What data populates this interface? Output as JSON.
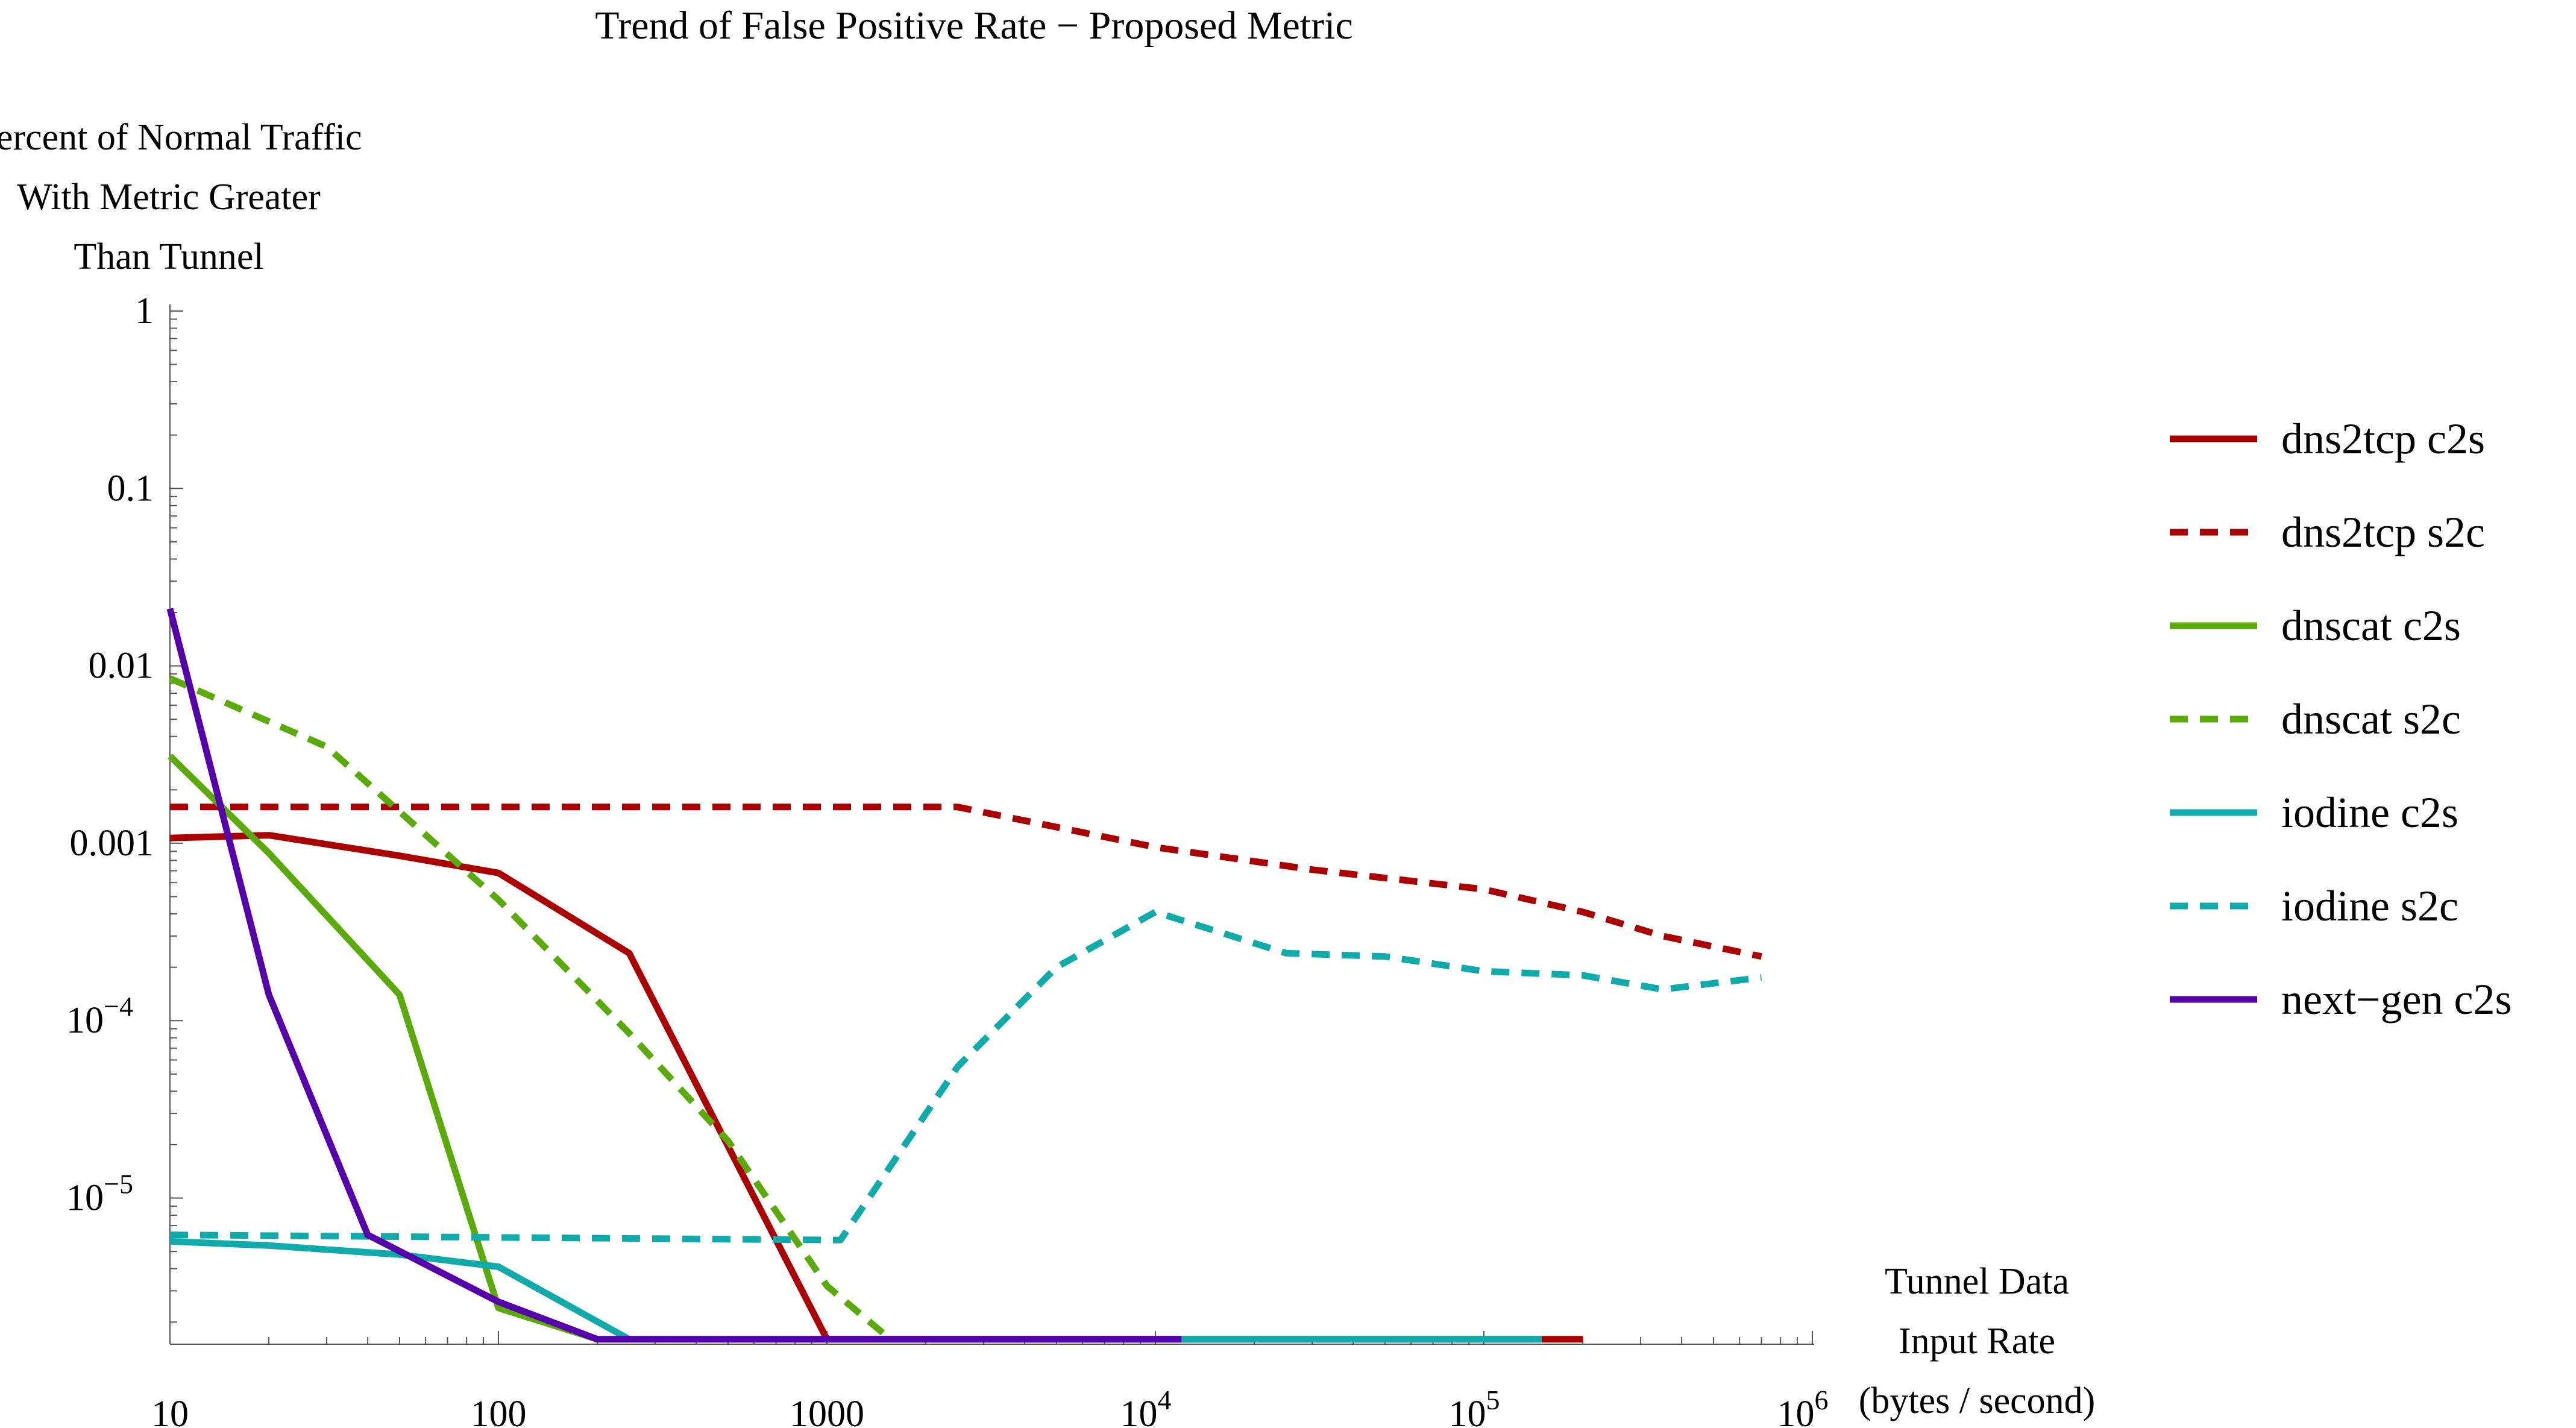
{
  "chart_data": {
    "type": "line",
    "title": "Trend of False Positive Rate − Proposed Metric",
    "ylabel_lines": [
      "Percent of Normal Traffic",
      "With Metric Greater",
      "Than Tunnel"
    ],
    "xlabel_lines": [
      "Tunnel Data",
      "Input Rate",
      "(bytes / second)"
    ],
    "x_scale": "log",
    "y_scale": "log",
    "xlim": [
      10,
      1000000
    ],
    "ylim": [
      1.5e-06,
      1
    ],
    "legend_position": "right",
    "grid": false,
    "x_ticks": [
      {
        "value": 10,
        "label": "10",
        "sup": ""
      },
      {
        "value": 100,
        "label": "100",
        "sup": ""
      },
      {
        "value": 1000,
        "label": "1000",
        "sup": ""
      },
      {
        "value": 10000,
        "label": "10",
        "sup": "4"
      },
      {
        "value": 100000,
        "label": "10",
        "sup": "5"
      },
      {
        "value": 1000000,
        "label": "10",
        "sup": "6"
      }
    ],
    "y_ticks": [
      {
        "value": 1,
        "label": "1",
        "sup": ""
      },
      {
        "value": 0.1,
        "label": "0.1",
        "sup": ""
      },
      {
        "value": 0.01,
        "label": "0.01",
        "sup": ""
      },
      {
        "value": 0.001,
        "label": "0.001",
        "sup": ""
      },
      {
        "value": 0.0001,
        "label": "10",
        "sup": "−4"
      },
      {
        "value": 1e-05,
        "label": "10",
        "sup": "−5"
      }
    ],
    "series": [
      {
        "name": "dns2tcp c2s",
        "color": "#aa0000",
        "dash": "solid",
        "points": [
          [
            10,
            0.00107
          ],
          [
            20,
            0.00111
          ],
          [
            50,
            0.00085
          ],
          [
            100,
            0.00068
          ],
          [
            250,
            0.00024
          ],
          [
            1000,
            1.6e-06
          ],
          [
            2000,
            1.6e-06
          ],
          [
            12000,
            1.6e-06
          ],
          [
            150000,
            1.6e-06
          ],
          [
            200000,
            1.6e-06
          ]
        ]
      },
      {
        "name": "dns2tcp s2c",
        "color": "#aa0000",
        "dash": "dashed",
        "points": [
          [
            10,
            0.0016
          ],
          [
            2500,
            0.0016
          ],
          [
            10000,
            0.00095
          ],
          [
            30000,
            0.00071
          ],
          [
            100000,
            0.00055
          ],
          [
            200000,
            0.00041
          ],
          [
            350000,
            0.0003
          ],
          [
            700000,
            0.00023
          ]
        ]
      },
      {
        "name": "dnscat c2s",
        "color": "#5aaa0a",
        "dash": "solid",
        "points": [
          [
            10,
            0.0031
          ],
          [
            20,
            0.00088
          ],
          [
            50,
            0.00014
          ],
          [
            100,
            2.4e-06
          ],
          [
            200,
            1.6e-06
          ],
          [
            250,
            1.6e-06
          ]
        ]
      },
      {
        "name": "dnscat s2c",
        "color": "#5aaa0a",
        "dash": "dashed",
        "points": [
          [
            10,
            0.0085
          ],
          [
            30,
            0.0035
          ],
          [
            100,
            0.00048
          ],
          [
            250,
            8.5e-05
          ],
          [
            500,
            2.1e-05
          ],
          [
            1000,
            3.2e-06
          ],
          [
            1500,
            1.7e-06
          ]
        ]
      },
      {
        "name": "iodine c2s",
        "color": "#11aaaa",
        "dash": "solid",
        "points": [
          [
            10,
            5.7e-06
          ],
          [
            20,
            5.4e-06
          ],
          [
            50,
            4.8e-06
          ],
          [
            100,
            4.1e-06
          ],
          [
            250,
            1.6e-06
          ],
          [
            12000,
            1.6e-06
          ],
          [
            150000,
            1.6e-06
          ]
        ]
      },
      {
        "name": "iodine s2c",
        "color": "#11aaaa",
        "dash": "dashed",
        "points": [
          [
            10,
            6.2e-06
          ],
          [
            100,
            6e-06
          ],
          [
            1000,
            5.8e-06
          ],
          [
            1100,
            5.8e-06
          ],
          [
            2500,
            5.5e-05
          ],
          [
            5000,
            0.0002
          ],
          [
            10000,
            0.00041
          ],
          [
            25000,
            0.00024
          ],
          [
            50000,
            0.00023
          ],
          [
            100000,
            0.00019
          ],
          [
            200000,
            0.00018
          ],
          [
            350000,
            0.00015
          ],
          [
            700000,
            0.000175
          ]
        ]
      },
      {
        "name": "next−gen c2s",
        "color": "#5500aa",
        "dash": "solid",
        "points": [
          [
            10,
            0.021
          ],
          [
            20,
            0.00014
          ],
          [
            40,
            6.2e-06
          ],
          [
            100,
            2.6e-06
          ],
          [
            200,
            1.6e-06
          ],
          [
            12000,
            1.6e-06
          ]
        ]
      }
    ]
  }
}
